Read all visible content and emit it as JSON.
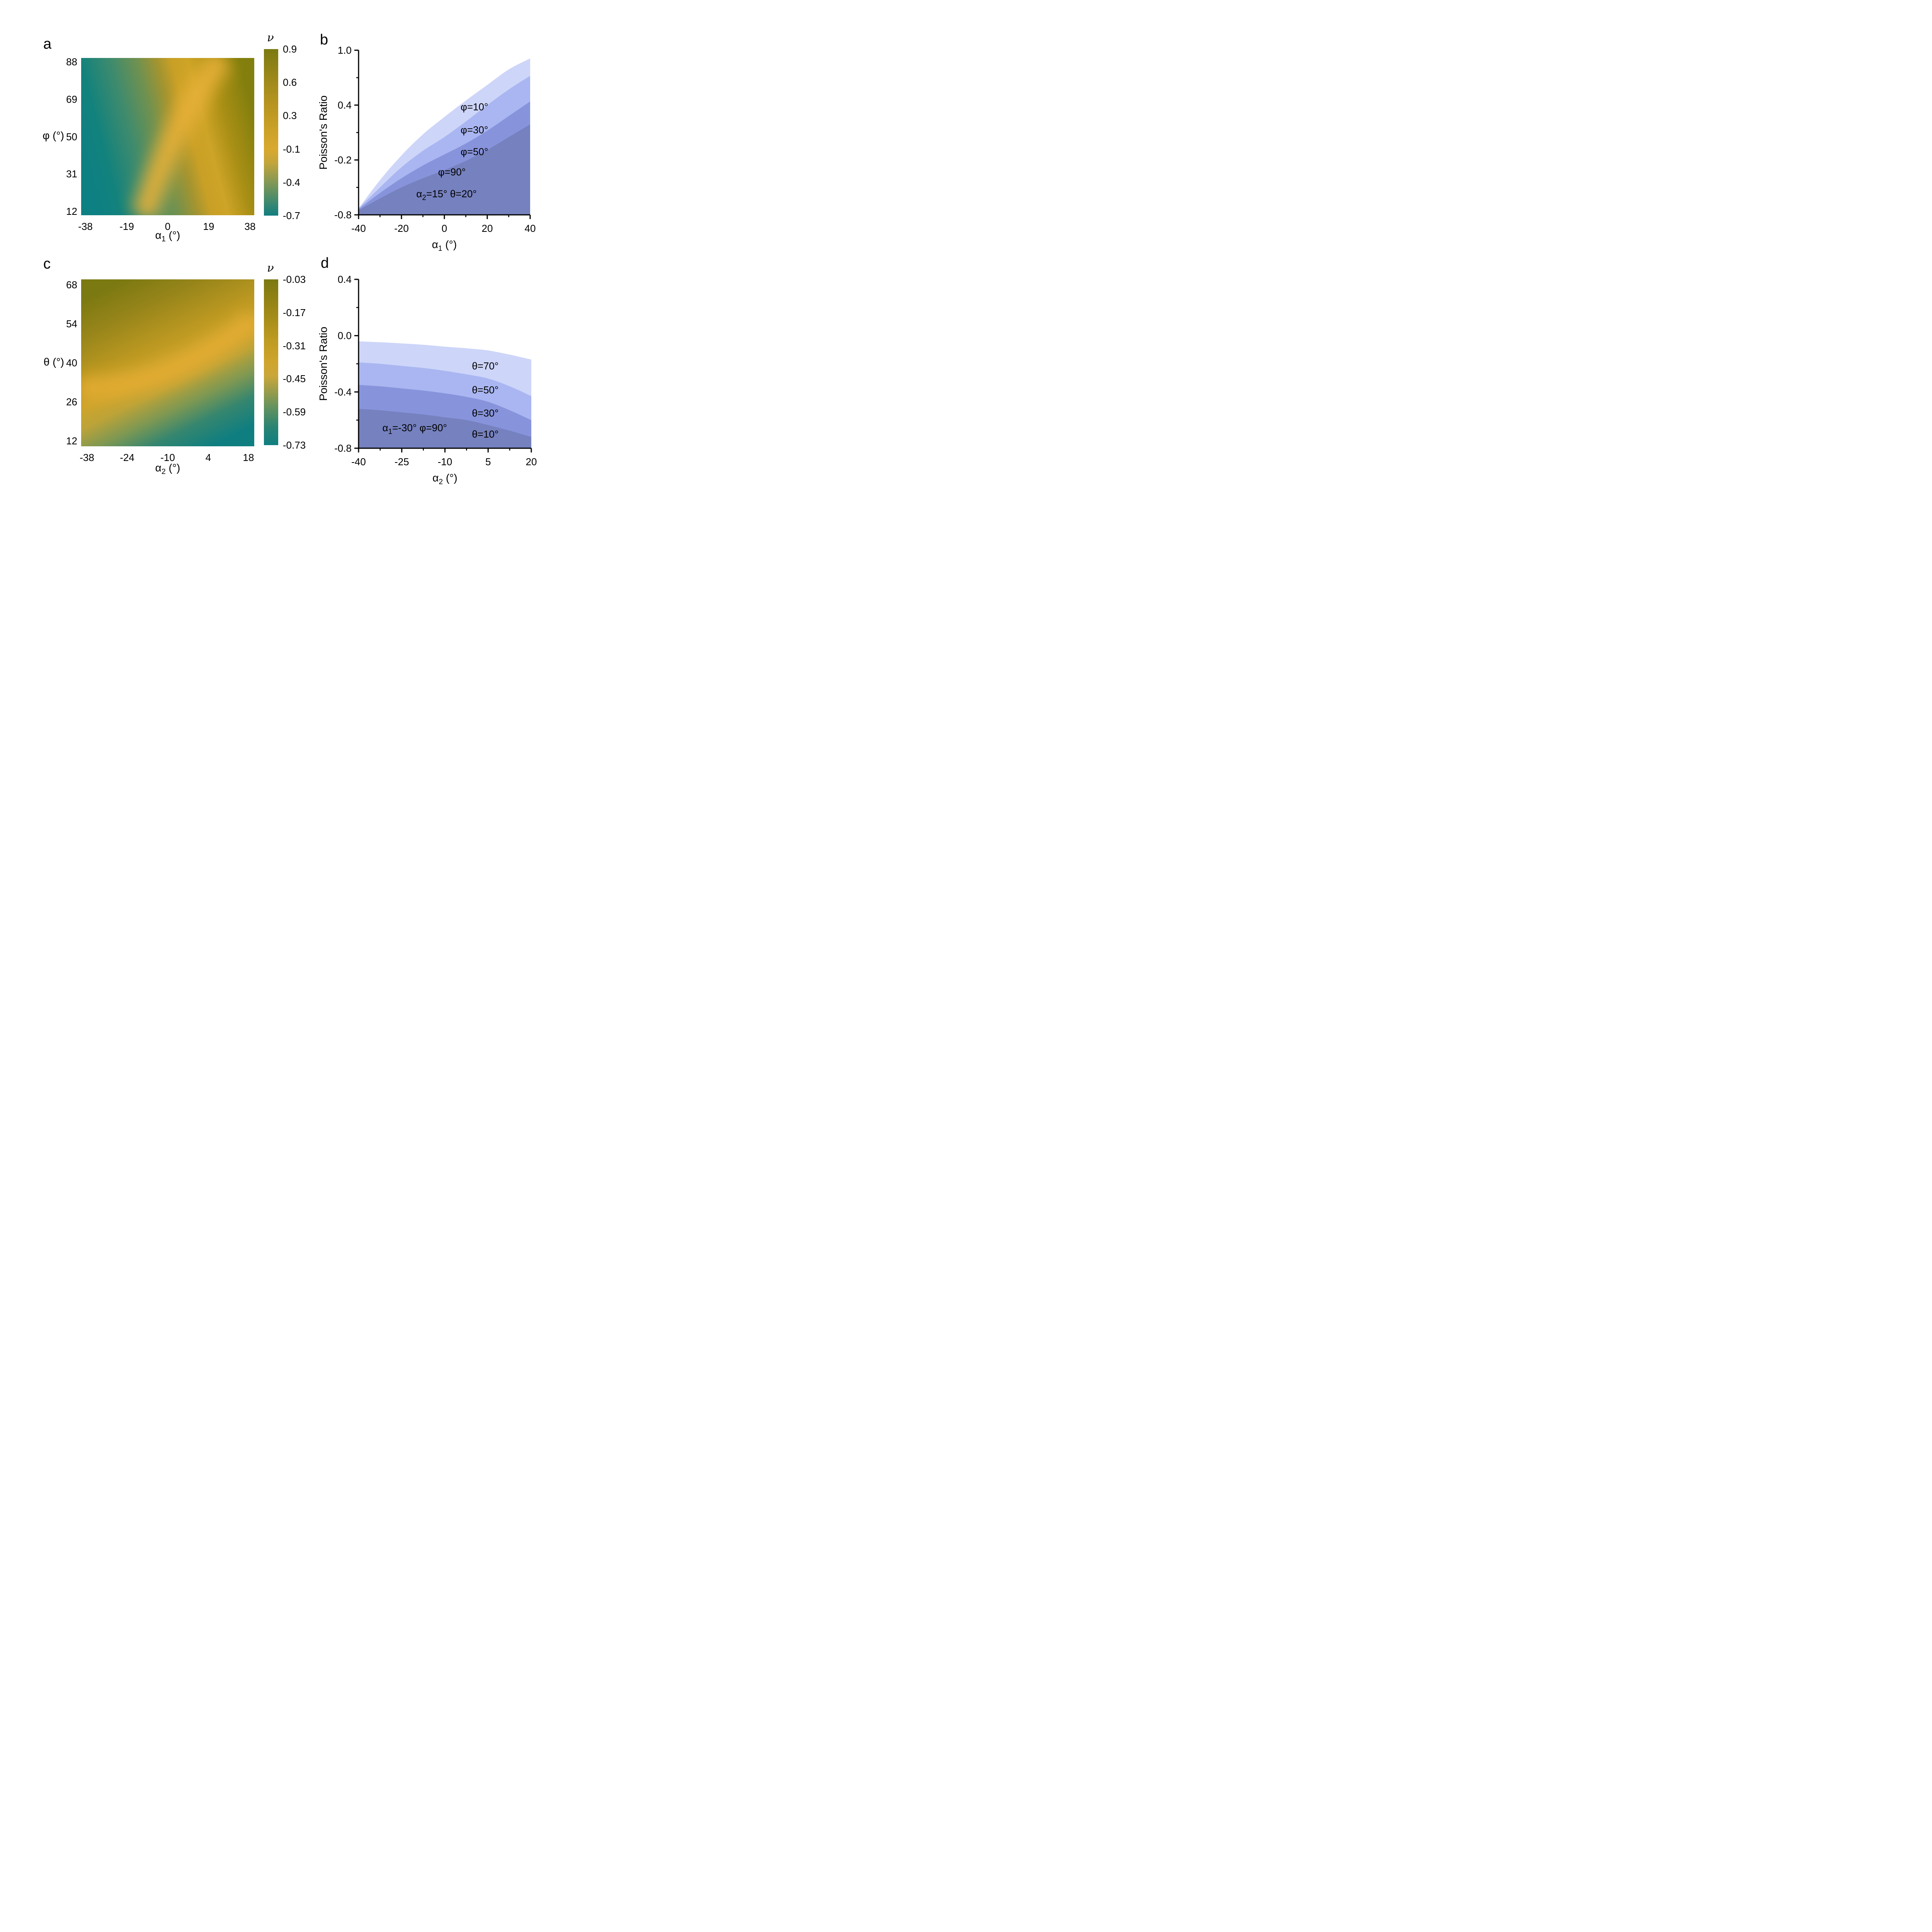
{
  "figure": {
    "background": "#ffffff"
  },
  "chart_data": {
    "panel_a": {
      "type": "heatmap",
      "panel_letter": "a",
      "ylabel": "φ (°)",
      "xlabel": {
        "base": "α",
        "sub": "1",
        "unit": " (°)"
      },
      "xlim": [
        -40,
        40
      ],
      "ylim": [
        10,
        90
      ],
      "x_tick_values": [
        -38,
        -19,
        0,
        19,
        38
      ],
      "x_ticks": [
        "-38",
        "-19",
        "0",
        "19",
        "38"
      ],
      "y_tick_values": [
        88,
        69,
        50,
        31,
        12
      ],
      "y_ticks": [
        "88",
        "69",
        "50",
        "31",
        "12"
      ],
      "colormap_stops": [
        "#0d8083",
        "#12827d",
        "#3f8b6d",
        "#6f9150",
        "#a39430",
        "#c9a026",
        "#cda427",
        "#a98f15",
        "#837f0e"
      ],
      "ridge_color": "#e7b037",
      "ridge_track_alpha1_phi": [
        [
          -8,
          12
        ],
        [
          6,
          32
        ],
        [
          20,
          58
        ],
        [
          33,
          88
        ]
      ],
      "corner_values": {
        "alpha1_-38_phi_12": -0.7,
        "alpha1_38_phi_12": 0.9,
        "alpha1_-38_phi_88": -0.5,
        "alpha1_38_phi_88": 0.2
      },
      "colorbar": {
        "title": "ν",
        "tick_labels": [
          "0.9",
          "0.6",
          "0.3",
          "-0.1",
          "-0.4",
          "-0.7"
        ],
        "stops": [
          "#7b7911",
          "#988619",
          "#b5941f",
          "#cda228",
          "#d9a92e",
          "#c4a53a",
          "#8f9a50",
          "#4f8d68",
          "#117e80"
        ]
      }
    },
    "panel_b": {
      "type": "area",
      "panel_letter": "b",
      "ylabel": "Poisson's Ratio",
      "xlabel_parts": [
        {
          "t": "α"
        },
        {
          "t": "1",
          "sub": true
        },
        {
          "t": " (°)"
        }
      ],
      "xlim": [
        -40,
        40
      ],
      "ylim": [
        -0.8,
        1.0
      ],
      "x_ticks": [
        "-40",
        "-20",
        "0",
        "20",
        "40"
      ],
      "x_tick_values": [
        -40,
        -20,
        0,
        20,
        40
      ],
      "x_minor": [
        -30,
        -10,
        10,
        30
      ],
      "y_ticks": [
        "1.0",
        "0.4",
        "-0.2",
        "-0.8"
      ],
      "y_tick_values": [
        1.0,
        0.4,
        -0.2,
        -0.8
      ],
      "y_minor": [
        0.7,
        0.1,
        -0.5
      ],
      "x": [
        -40,
        -30,
        -20,
        -10,
        0,
        10,
        20,
        30,
        40
      ],
      "series": [
        {
          "name": "φ=10°",
          "color": "#cdd5f9",
          "values": [
            -0.73,
            -0.42,
            -0.15,
            0.08,
            0.27,
            0.45,
            0.62,
            0.79,
            0.91
          ],
          "label": {
            "text": "φ=10°",
            "x": 14,
            "y": 0.38
          }
        },
        {
          "name": "φ=30°",
          "color": "#aab6f1",
          "values": [
            -0.73,
            -0.5,
            -0.28,
            -0.1,
            0.05,
            0.22,
            0.4,
            0.57,
            0.72
          ],
          "label": {
            "text": "φ=30°",
            "x": 14,
            "y": 0.13
          }
        },
        {
          "name": "φ=50°",
          "color": "#8794dc",
          "values": [
            -0.74,
            -0.56,
            -0.4,
            -0.26,
            -0.14,
            -0.02,
            0.12,
            0.28,
            0.44
          ],
          "label": {
            "text": "φ=50°",
            "x": 14,
            "y": -0.11
          }
        },
        {
          "name": "φ=90°",
          "color": "#7681bf",
          "values": [
            -0.75,
            -0.62,
            -0.5,
            -0.4,
            -0.31,
            -0.21,
            -0.09,
            0.05,
            0.19
          ],
          "label": {
            "text": "φ=90°",
            "x": 3.5,
            "y": -0.33
          }
        }
      ],
      "annotation": {
        "parts": [
          {
            "t": "α"
          },
          {
            "t": "2",
            "sub": true
          },
          {
            "t": "=15°  θ=20°"
          }
        ],
        "x": 1,
        "y": -0.57
      }
    },
    "panel_c": {
      "type": "heatmap",
      "panel_letter": "c",
      "ylabel": "θ (°)",
      "xlabel": {
        "base": "α",
        "sub": "2",
        "unit": " (°)"
      },
      "xlim": [
        -40,
        20
      ],
      "ylim": [
        10,
        70
      ],
      "x_tick_values": [
        -38,
        -24,
        -10,
        4,
        18
      ],
      "x_ticks": [
        "-38",
        "-24",
        "-10",
        "4",
        "18"
      ],
      "y_tick_values": [
        68,
        54,
        40,
        26,
        12
      ],
      "y_ticks": [
        "68",
        "54",
        "40",
        "26",
        "12"
      ],
      "colormap_stops": [
        "#7b7911",
        "#97851a",
        "#bb9821",
        "#cda42c",
        "#bda338",
        "#7e9852",
        "#35866f",
        "#0f7e80"
      ],
      "ridge_color": "#e3ac33",
      "ridge_track_alpha2_theta": [
        [
          -38,
          25
        ],
        [
          -10,
          30
        ],
        [
          8,
          40
        ],
        [
          18,
          54
        ]
      ],
      "corner_values": {
        "alpha2_-38_theta_12": -0.45,
        "alpha2_18_theta_12": -0.73,
        "alpha2_-38_theta_68": -0.05,
        "alpha2_18_theta_68": -0.2
      },
      "colorbar": {
        "title": "ν",
        "tick_labels": [
          "-0.03",
          "-0.17",
          "-0.31",
          "-0.45",
          "-0.59",
          "-0.73"
        ],
        "stops": [
          "#7b7911",
          "#9c8717",
          "#bd9a21",
          "#cfa52c",
          "#cba739",
          "#979c4a",
          "#5f9160",
          "#2a8473",
          "#0f7e80"
        ]
      }
    },
    "panel_d": {
      "type": "area",
      "panel_letter": "d",
      "ylabel": "Poisson's Ratio",
      "xlabel_parts": [
        {
          "t": "α"
        },
        {
          "t": "2",
          "sub": true
        },
        {
          "t": " (°)"
        }
      ],
      "xlim": [
        -40,
        20
      ],
      "ylim": [
        -0.8,
        0.4
      ],
      "x_ticks": [
        "-40",
        "-25",
        "-10",
        "5",
        "20"
      ],
      "x_tick_values": [
        -40,
        -25,
        -10,
        5,
        20
      ],
      "x_minor": [
        -32.5,
        -17.5,
        -2.5,
        12.5
      ],
      "y_ticks": [
        "0.4",
        "0.0",
        "-0.4",
        "-0.8"
      ],
      "y_tick_values": [
        0.4,
        0.0,
        -0.4,
        -0.8
      ],
      "y_minor": [
        0.2,
        -0.2,
        -0.6
      ],
      "x": [
        -40,
        -32.5,
        -25,
        -17.5,
        -10,
        -2.5,
        5,
        12.5,
        20
      ],
      "series": [
        {
          "name": "θ=70°",
          "color": "#cdd5f9",
          "values": [
            -0.04,
            -0.047,
            -0.055,
            -0.065,
            -0.078,
            -0.09,
            -0.105,
            -0.135,
            -0.17
          ],
          "label": {
            "text": "θ=70°",
            "x": 4,
            "y": -0.215
          }
        },
        {
          "name": "θ=50°",
          "color": "#aab6f1",
          "values": [
            -0.19,
            -0.2,
            -0.215,
            -0.23,
            -0.25,
            -0.275,
            -0.305,
            -0.36,
            -0.43
          ],
          "label": {
            "text": "θ=50°",
            "x": 4,
            "y": -0.385
          }
        },
        {
          "name": "θ=30°",
          "color": "#8794dc",
          "values": [
            -0.35,
            -0.36,
            -0.375,
            -0.39,
            -0.41,
            -0.435,
            -0.47,
            -0.53,
            -0.6
          ],
          "label": {
            "text": "θ=30°",
            "x": 4,
            "y": -0.55
          }
        },
        {
          "name": "θ=10°",
          "color": "#7681bf",
          "values": [
            -0.52,
            -0.53,
            -0.545,
            -0.56,
            -0.58,
            -0.6,
            -0.635,
            -0.675,
            -0.72
          ],
          "label": {
            "text": "θ=10°",
            "x": 4,
            "y": -0.7
          }
        }
      ],
      "annotation": {
        "parts": [
          {
            "t": "α"
          },
          {
            "t": "1",
            "sub": true
          },
          {
            "t": "=-30° φ=90°"
          }
        ],
        "x": -20.5,
        "y": -0.655
      }
    }
  }
}
